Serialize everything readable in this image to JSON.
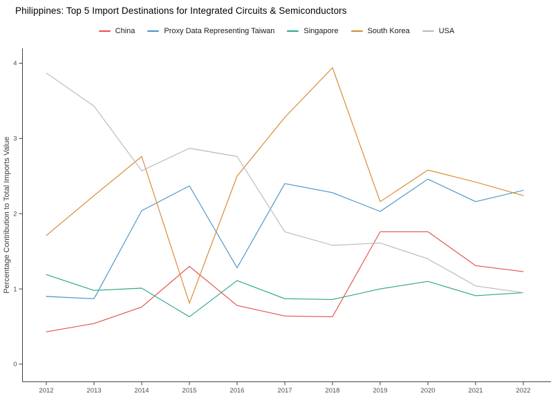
{
  "colors": {
    "background": "#ffffff",
    "axis_line": "#404040",
    "tick_text": "#4d4d4d",
    "axis_title_text": "#3c3c3c",
    "title_text": "#000000",
    "legend_text": "#1a1a1a"
  },
  "chart_data": {
    "type": "line",
    "title": "Philippines: Top 5 Import Destinations for Integrated Circuits & Semiconductors",
    "xlabel": "",
    "ylabel": "Percentage Contribution to Total Imports Value",
    "x": [
      2012,
      2013,
      2014,
      2015,
      2016,
      2017,
      2018,
      2019,
      2020,
      2021,
      2022
    ],
    "ylim": [
      0,
      4
    ],
    "yticks": [
      0,
      1,
      2,
      3,
      4
    ],
    "grid": false,
    "legend_position": "top-center",
    "series": [
      {
        "name": "China",
        "color": "#e4504e",
        "values": [
          0.43,
          0.54,
          0.76,
          1.3,
          0.78,
          0.64,
          0.63,
          1.76,
          1.76,
          1.31,
          1.23
        ]
      },
      {
        "name": "Proxy Data Representing Taiwan",
        "color": "#4693c6",
        "values": [
          0.9,
          0.87,
          2.04,
          2.37,
          1.28,
          2.4,
          2.28,
          2.03,
          2.46,
          2.16,
          2.31
        ]
      },
      {
        "name": "Singapore",
        "color": "#2ba58c",
        "values": [
          1.19,
          0.98,
          1.01,
          0.63,
          1.11,
          0.87,
          0.86,
          1.0,
          1.1,
          0.91,
          0.95
        ]
      },
      {
        "name": "South Korea",
        "color": "#d9872e",
        "values": [
          1.71,
          2.24,
          2.76,
          0.81,
          2.5,
          3.28,
          3.94,
          2.16,
          2.58,
          2.42,
          2.24
        ]
      },
      {
        "name": "USA",
        "color": "#b9b9b9",
        "values": [
          3.87,
          3.43,
          2.57,
          2.87,
          2.76,
          1.76,
          1.58,
          1.61,
          1.4,
          1.04,
          0.95
        ]
      }
    ]
  }
}
